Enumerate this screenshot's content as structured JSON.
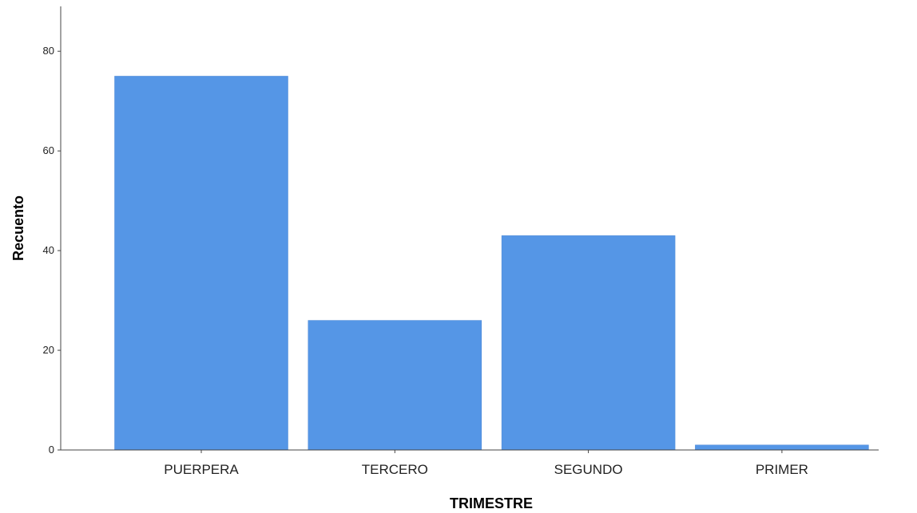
{
  "chart_data": {
    "type": "bar",
    "title": "",
    "xlabel": "TRIMESTRE",
    "ylabel": "Recuento",
    "categories": [
      "PUERPERA",
      "TERCERO",
      "SEGUNDO",
      "PRIMER"
    ],
    "values": [
      75,
      26,
      43,
      1
    ],
    "ylim": [
      0,
      89
    ],
    "yticks": [
      0,
      20,
      40,
      60,
      80
    ],
    "grid": false,
    "bar_color": "#5596e6"
  }
}
